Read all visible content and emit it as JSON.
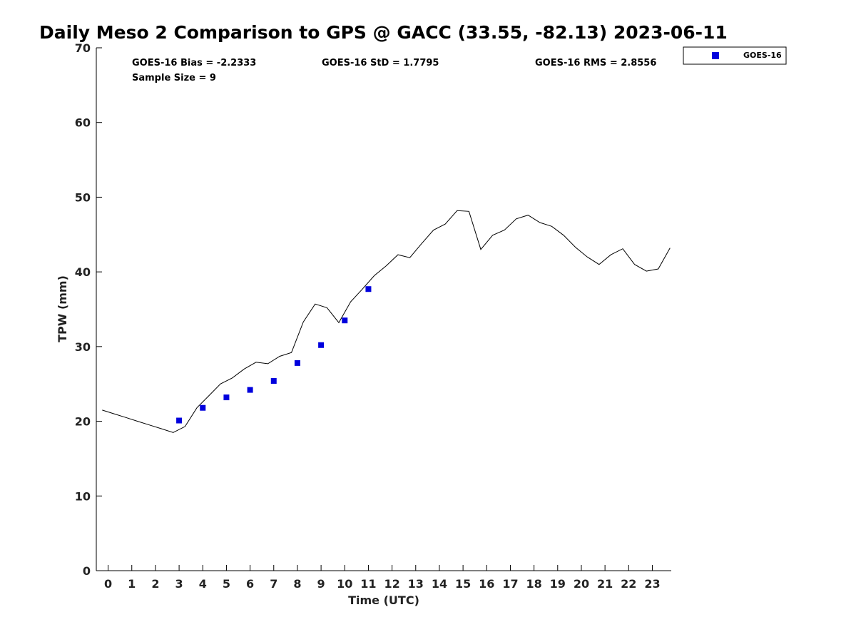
{
  "chart_data": {
    "type": "scatter",
    "title": "Daily Meso 2 Comparison to GPS @ GACC (33.55, -82.13) 2023-06-11",
    "xlabel": "Time (UTC)",
    "ylabel": "TPW (mm)",
    "xlim": [
      -0.5,
      23.8
    ],
    "ylim": [
      0,
      70
    ],
    "x_ticks": [
      "0",
      "1",
      "2",
      "3",
      "4",
      "5",
      "6",
      "7",
      "8",
      "9",
      "10",
      "11",
      "12",
      "13",
      "14",
      "15",
      "16",
      "17",
      "18",
      "19",
      "20",
      "21",
      "22",
      "23"
    ],
    "y_ticks": [
      "0",
      "10",
      "20",
      "30",
      "40",
      "50",
      "60",
      "70"
    ],
    "grid": false,
    "legend_position": "top-right",
    "stats": {
      "bias": "GOES-16 Bias = -2.2333",
      "std": "GOES-16 StD = 1.7795",
      "rms": "GOES-16 RMS = 2.8556",
      "sample_size": "Sample Size = 9"
    },
    "series": [
      {
        "name": "GOES-16",
        "kind": "scatter",
        "marker": "square",
        "color": "#0000dd",
        "x": [
          3,
          4,
          5,
          6,
          7,
          8,
          9,
          10,
          11
        ],
        "y": [
          20.1,
          21.8,
          23.2,
          24.2,
          25.4,
          27.8,
          30.2,
          33.5,
          37.7
        ]
      },
      {
        "kind": "line",
        "color": "#000000",
        "x": [
          -0.25,
          0.25,
          0.75,
          1.25,
          1.75,
          2.25,
          2.75,
          3.25,
          3.75,
          4.25,
          4.75,
          5.25,
          5.75,
          6.25,
          6.75,
          7.25,
          7.75,
          8.25,
          8.75,
          9.25,
          9.75,
          10.25,
          10.75,
          11.25,
          11.75,
          12.25,
          12.75,
          13.25,
          13.75,
          14.25,
          14.75,
          15.25,
          15.75,
          16.25,
          16.75,
          17.25,
          17.75,
          18.25,
          18.75,
          19.25,
          19.75,
          20.25,
          20.75,
          21.25,
          21.75,
          22.25,
          22.75,
          23.25,
          23.75
        ],
        "y": [
          21.5,
          21.0,
          20.5,
          20.0,
          19.5,
          19.0,
          18.5,
          19.3,
          21.8,
          23.4,
          25.0,
          25.8,
          27.0,
          27.9,
          27.7,
          28.7,
          29.2,
          33.3,
          35.7,
          35.2,
          33.2,
          36.0,
          37.7,
          39.5,
          40.8,
          42.3,
          41.9,
          43.8,
          45.6,
          46.4,
          48.2,
          48.1,
          43.0,
          44.9,
          45.6,
          47.1,
          47.6,
          46.6,
          46.1,
          44.9,
          43.3,
          42.0,
          41.0,
          42.3,
          43.1,
          41.0,
          40.1,
          40.4,
          43.2
        ]
      }
    ]
  }
}
